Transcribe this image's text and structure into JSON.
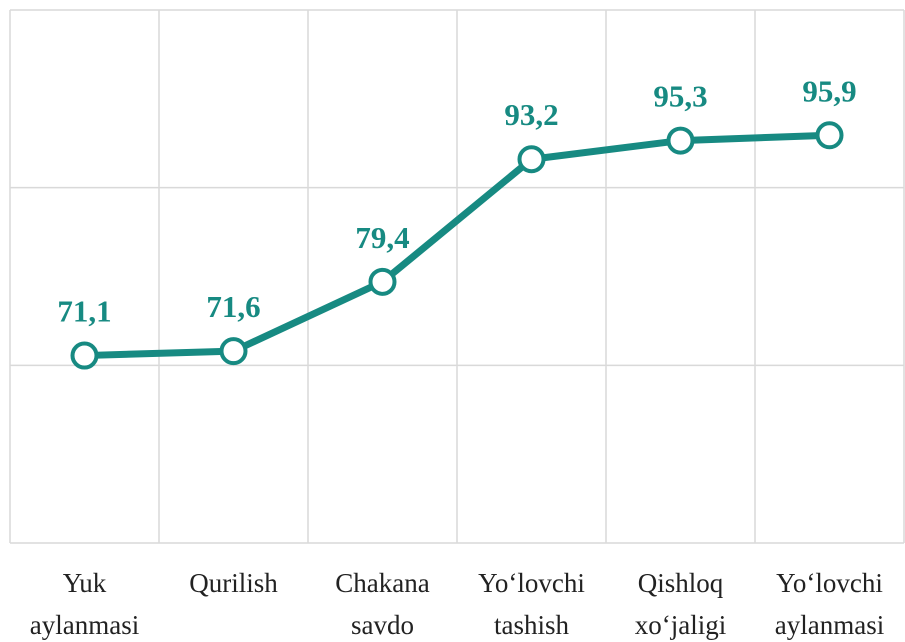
{
  "chart_data": {
    "type": "line",
    "categories": [
      "Yuk aylanmasi",
      "Qurilish",
      "Chakana savdo",
      "Yo‘lovchi tashish",
      "Qishloq xo‘jaligi",
      "Yo‘lovchi aylanmasi"
    ],
    "series": [
      {
        "color": "#178a82",
        "values": [
          71.1,
          71.6,
          79.4,
          93.2,
          95.3,
          95.9
        ],
        "value_labels": [
          "71,1",
          "71,6",
          "79,4",
          "93,2",
          "95,3",
          "95,9"
        ]
      }
    ],
    "ylim": [
      50,
      110
    ],
    "yticks": [
      50,
      70,
      90,
      110
    ],
    "grid": true
  }
}
